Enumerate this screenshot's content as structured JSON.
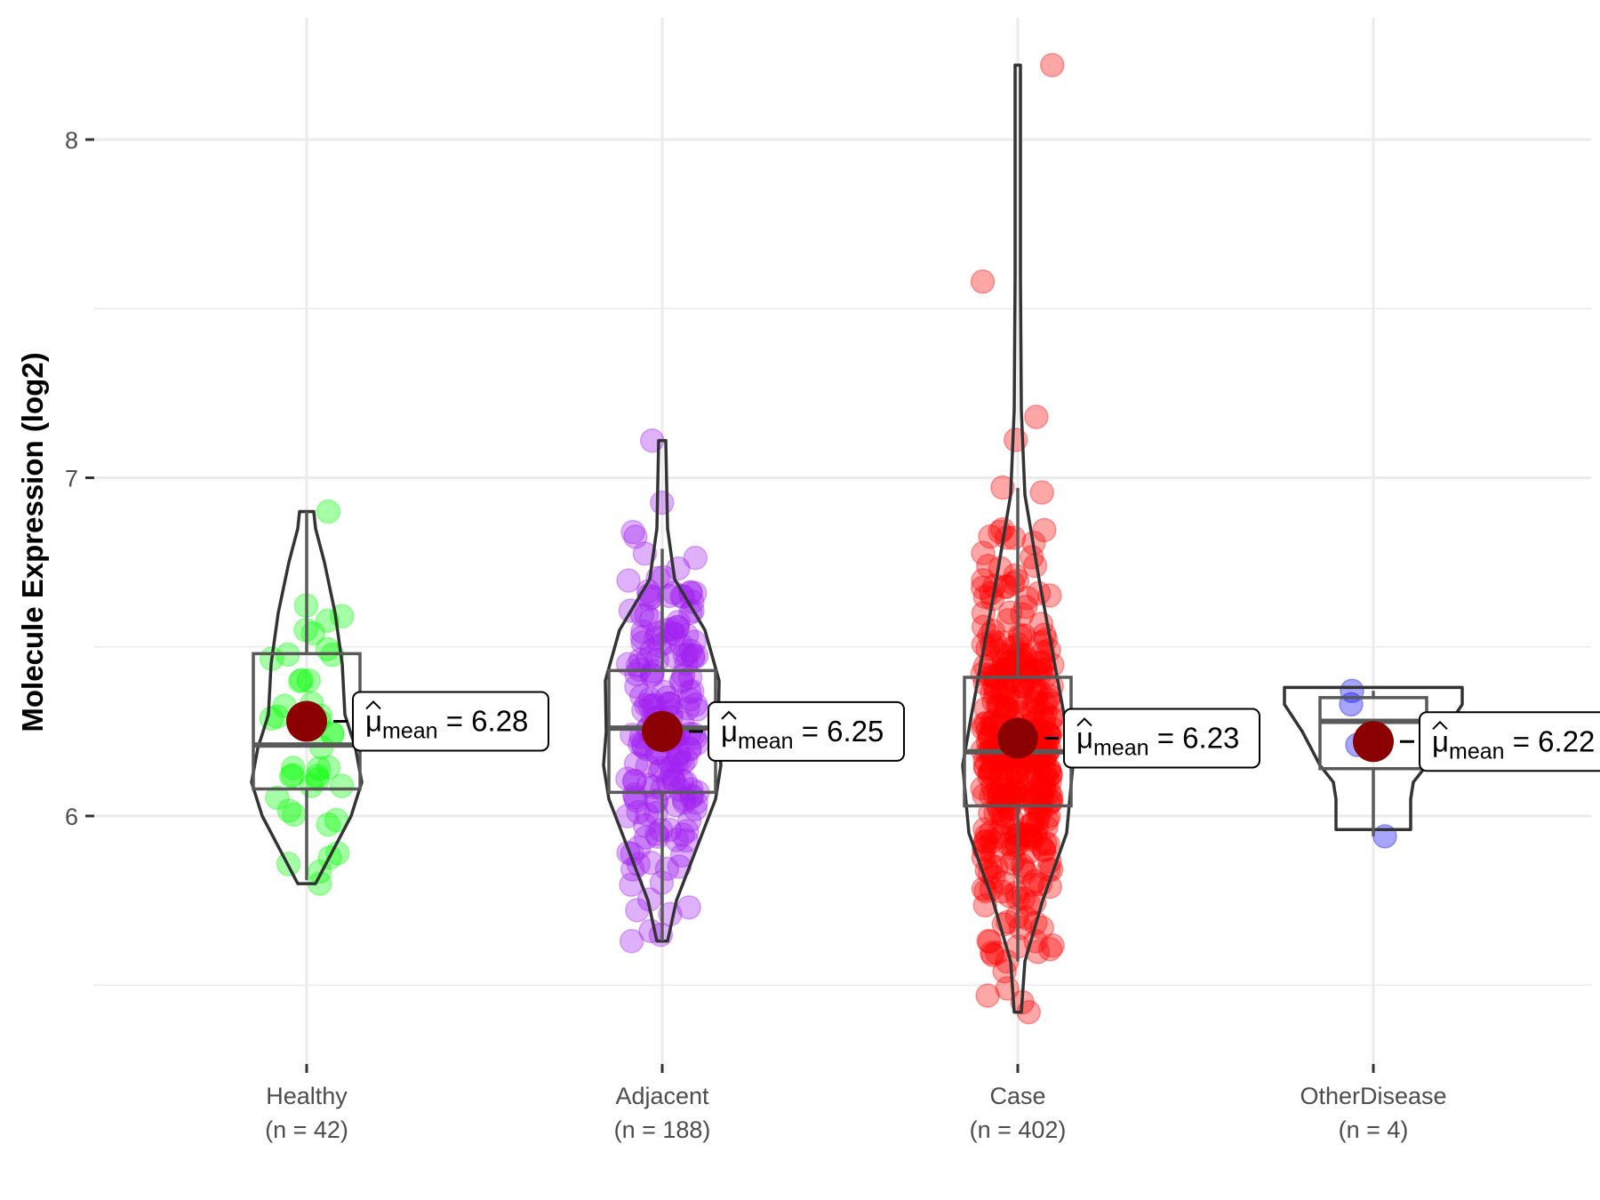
{
  "chart_data": {
    "type": "violin-box-scatter",
    "title": "",
    "xlabel": "",
    "ylabel": "Molecule Expression (log2)",
    "ylim": [
      5.35,
      8.35
    ],
    "yticks": [
      6,
      7,
      8
    ],
    "y_minor_gridlines": [
      5.5,
      6.5,
      7.5
    ],
    "grid": true,
    "legend": "none",
    "mean_point_color": "#8B0000",
    "outline_color": "#333333",
    "groups": [
      {
        "name": "Healthy",
        "label": "Healthy",
        "n_label": "(n = 42)",
        "n": 42,
        "color": "#00FF00",
        "mean": 6.28,
        "mean_label": "6.28",
        "box": {
          "min": 5.81,
          "q1": 6.08,
          "median": 6.21,
          "q3": 6.48,
          "max": 6.9
        },
        "violin_range": [
          5.8,
          6.9
        ],
        "extreme_points": [
          6.9,
          5.8
        ]
      },
      {
        "name": "Adjacent",
        "label": "Adjacent",
        "n_label": "(n = 188)",
        "n": 188,
        "color": "#A020F0",
        "mean": 6.25,
        "mean_label": "6.25",
        "box": {
          "min": 5.63,
          "q1": 6.07,
          "median": 6.26,
          "q3": 6.43,
          "max": 6.79
        },
        "violin_range": [
          5.63,
          7.11
        ],
        "extreme_points": [
          7.11,
          5.66,
          5.63
        ]
      },
      {
        "name": "Case",
        "label": "Case",
        "n_label": "(n = 402)",
        "n": 402,
        "color": "#FF0000",
        "mean": 6.23,
        "mean_label": "6.23",
        "box": {
          "min": 5.57,
          "q1": 6.03,
          "median": 6.19,
          "q3": 6.41,
          "max": 6.97
        },
        "violin_range": [
          5.42,
          8.22
        ],
        "extreme_points": [
          8.22,
          7.58,
          7.18,
          5.49,
          5.42
        ]
      },
      {
        "name": "OtherDisease",
        "label": "OtherDisease",
        "n_label": "(n = 4)",
        "n": 4,
        "color": "#0000FF",
        "mean": 6.22,
        "mean_label": "6.22",
        "box": {
          "min": 5.94,
          "q1": 6.14,
          "median": 6.28,
          "q3": 6.35,
          "max": 6.37
        },
        "violin_range": [
          5.96,
          6.38
        ],
        "points": [
          6.37,
          6.33,
          6.21,
          5.94
        ]
      }
    ],
    "mean_label_prefix": "μ",
    "mean_label_subscript": "mean",
    "mean_label_equals": "="
  }
}
